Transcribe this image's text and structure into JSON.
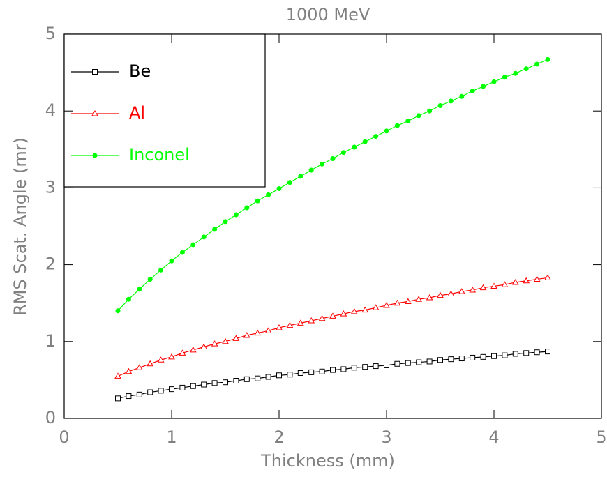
{
  "chart_data": {
    "type": "line",
    "title": "1000 MeV",
    "x_label": "Thickness (mm)",
    "y_label": "RMS Scat. Angle (mr)",
    "x": [
      0.5,
      0.6,
      0.7,
      0.8,
      0.9,
      1.0,
      1.1,
      1.2,
      1.3,
      1.4,
      1.5,
      1.6,
      1.7,
      1.8,
      1.9,
      2.0,
      2.1,
      2.2,
      2.3,
      2.4,
      2.5,
      2.6,
      2.7,
      2.8,
      2.9,
      3.0,
      3.1,
      3.2,
      3.3,
      3.4,
      3.5,
      3.6,
      3.7,
      3.8,
      3.9,
      4.0,
      4.1,
      4.2,
      4.3,
      4.4,
      4.5
    ],
    "series": [
      {
        "name": "Be",
        "color": "#000000",
        "marker": "square",
        "values": [
          0.26,
          0.29,
          0.31,
          0.34,
          0.36,
          0.38,
          0.4,
          0.42,
          0.44,
          0.46,
          0.47,
          0.49,
          0.51,
          0.52,
          0.54,
          0.56,
          0.57,
          0.59,
          0.6,
          0.61,
          0.63,
          0.64,
          0.66,
          0.67,
          0.68,
          0.69,
          0.71,
          0.72,
          0.73,
          0.74,
          0.76,
          0.77,
          0.78,
          0.79,
          0.8,
          0.81,
          0.82,
          0.84,
          0.85,
          0.86,
          0.87
        ]
      },
      {
        "name": "Al",
        "color": "#ff0000",
        "marker": "triangle",
        "values": [
          0.55,
          0.61,
          0.66,
          0.71,
          0.76,
          0.8,
          0.85,
          0.89,
          0.93,
          0.97,
          1.0,
          1.04,
          1.08,
          1.11,
          1.14,
          1.18,
          1.21,
          1.24,
          1.27,
          1.3,
          1.33,
          1.36,
          1.39,
          1.41,
          1.44,
          1.47,
          1.5,
          1.52,
          1.55,
          1.57,
          1.6,
          1.62,
          1.65,
          1.67,
          1.7,
          1.72,
          1.74,
          1.77,
          1.79,
          1.81,
          1.83
        ]
      },
      {
        "name": "Inconel",
        "color": "#00ff00",
        "marker": "star",
        "values": [
          1.4,
          1.55,
          1.68,
          1.81,
          1.93,
          2.05,
          2.16,
          2.26,
          2.36,
          2.46,
          2.56,
          2.65,
          2.74,
          2.83,
          2.91,
          2.99,
          3.07,
          3.15,
          3.23,
          3.31,
          3.38,
          3.46,
          3.53,
          3.6,
          3.67,
          3.74,
          3.81,
          3.87,
          3.94,
          4.0,
          4.07,
          4.13,
          4.19,
          4.26,
          4.32,
          4.38,
          4.44,
          4.49,
          4.55,
          4.61,
          4.67
        ]
      }
    ],
    "xlim": [
      0,
      5
    ],
    "ylim": [
      0,
      5
    ],
    "xticks": [
      0,
      1,
      2,
      3,
      4,
      5
    ],
    "yticks": [
      0,
      1,
      2,
      3,
      4,
      5
    ],
    "grid": false,
    "legend": "top-left"
  }
}
